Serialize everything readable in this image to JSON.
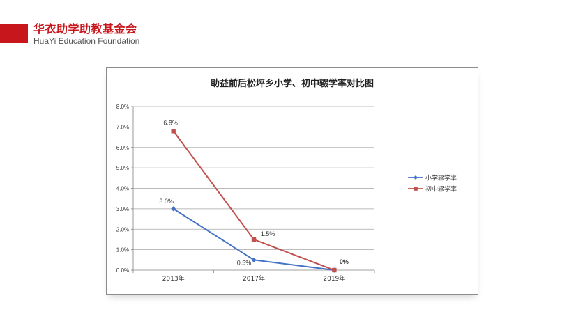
{
  "brand": {
    "name_cn": "华衣助学助教基金会",
    "name_en": "HuaYi Education Foundation",
    "accent_color": "#c8161d"
  },
  "chart_data": {
    "type": "line",
    "title": "助益前后松坪乡小学、初中辍学率对比图",
    "categories": [
      "2013年",
      "2017年",
      "2019年"
    ],
    "ylim": [
      0,
      8
    ],
    "y_ticks": [
      "0.0%",
      "1.0%",
      "2.0%",
      "3.0%",
      "4.0%",
      "5.0%",
      "6.0%",
      "7.0%",
      "8.0%"
    ],
    "grid": true,
    "legend_position": "right",
    "series": [
      {
        "name": "小学辍学率",
        "values": [
          3.0,
          0.5,
          0
        ],
        "labels": [
          "3.0%",
          "0.5%",
          ""
        ],
        "color": "#4472c4",
        "marker": "diamond"
      },
      {
        "name": "初中辍学率",
        "values": [
          6.8,
          1.5,
          0
        ],
        "labels": [
          "6.8%",
          "1.5%",
          "0%"
        ],
        "color": "#c0504d",
        "marker": "square"
      }
    ]
  }
}
